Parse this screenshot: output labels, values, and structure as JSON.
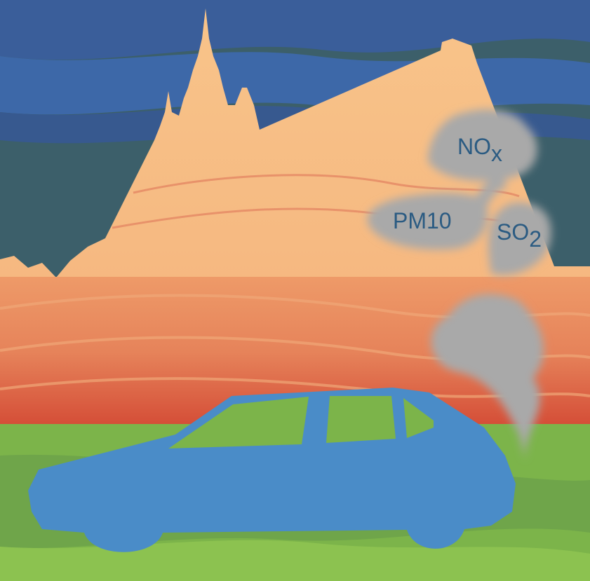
{
  "labels": [
    {
      "main": "NO",
      "sub": "x"
    },
    {
      "main": "PM10"
    },
    {
      "main": "SO",
      "sub": "2"
    }
  ]
}
